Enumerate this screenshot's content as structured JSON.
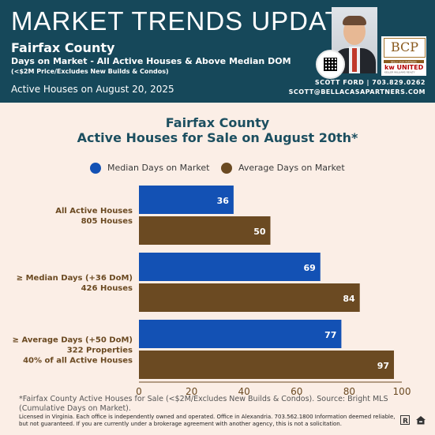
{
  "header": {
    "title": "MARKET TRENDS UPDATE",
    "county": "Fairfax County",
    "subtitle": "Days on Market - All Active Houses & Above Median DOM",
    "note": "(<$2M Price/Excludes New Builds & Condos)",
    "date_line": "Active Houses on August 20, 2025",
    "logo_text": "BCP",
    "logo_caption": "BELLA CASA PARTNERS",
    "brokerage": "kw UNITED",
    "brokerage_small": "KELLER WILLIAMS REALTY",
    "contact_line1": "SCOTT FORD | 703.829.0262",
    "contact_line2": "SCOTT@BELLACASAPARTNERS.COM"
  },
  "chart_data": {
    "type": "bar",
    "orientation": "horizontal",
    "title_line1": "Fairfax County",
    "title_line2": "Active Houses for Sale on August 20th*",
    "categories": [
      {
        "lines": [
          "All Active Houses",
          "805 Houses"
        ]
      },
      {
        "lines": [
          "≥ Median Days (+36 DoM)",
          "426 Houses"
        ]
      },
      {
        "lines": [
          "≥ Average Days (+50 DoM)",
          "322 Properties",
          "40% of all Active Houses"
        ]
      }
    ],
    "series": [
      {
        "name": "Median Days on Market",
        "color": "#1351b4",
        "values": [
          36,
          69,
          77
        ]
      },
      {
        "name": "Average Days on Market",
        "color": "#6b4a22",
        "values": [
          50,
          84,
          97
        ]
      }
    ],
    "xlim": [
      0,
      100
    ],
    "xticks": [
      0,
      20,
      40,
      60,
      80,
      100
    ],
    "grid": false,
    "legend_position": "top"
  },
  "footer": {
    "footnote": "*Fairfax County Active Houses for Sale (<$2M/Excludes New Builds & Condos). Source: Bright MLS (Cumulative Days on Market).",
    "license": "Licensed in Virginia. Each office is independently owned and operated. Office in Alexandria. 703.562.1800  Information deemed reliable, but not guaranteed. If you are currently under a brokerage agreement with another agency, this is not a solicitation."
  }
}
